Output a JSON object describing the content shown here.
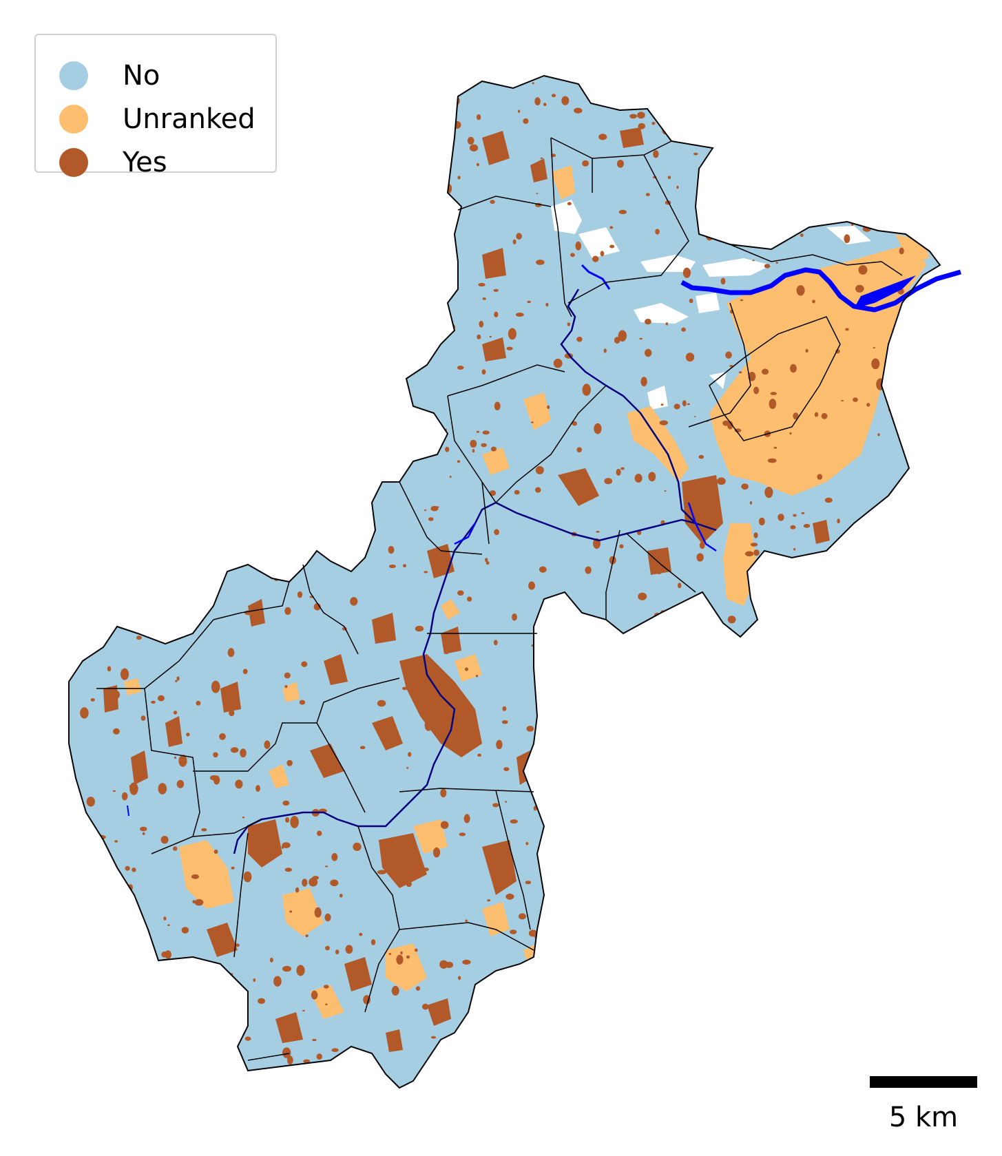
{
  "legend": {
    "items": [
      {
        "label": "No",
        "color": "#a6cee3"
      },
      {
        "label": "Unranked",
        "color": "#fdbf6f"
      },
      {
        "label": "Yes",
        "color": "#b15928"
      }
    ]
  },
  "colors": {
    "no": "#a6cee3",
    "unranked": "#fdbf6f",
    "yes": "#b15928",
    "river": "#0000ff",
    "boundary": "#000000",
    "background": "#ffffff"
  },
  "scale_bar": {
    "label": "5 km",
    "value_km": 5
  }
}
